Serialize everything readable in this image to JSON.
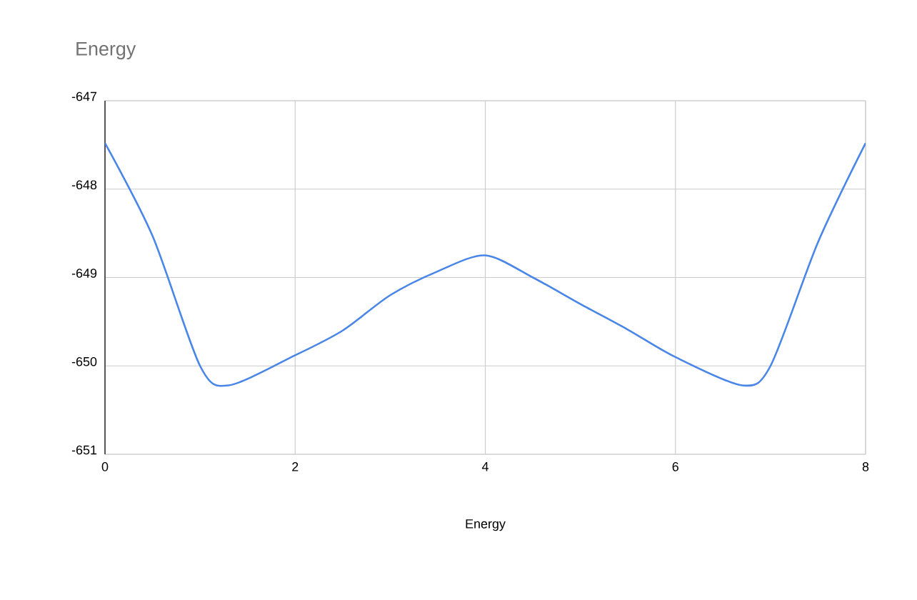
{
  "chart_data": {
    "type": "line",
    "title": "Energy",
    "xlabel": "Energy",
    "x": [
      0,
      0.5,
      1,
      1.3,
      2,
      2.5,
      3,
      3.5,
      4,
      4.5,
      5,
      5.5,
      6,
      6.7,
      7,
      7.5,
      8
    ],
    "series": [
      {
        "color": "#4a86e8",
        "values": [
          -647.48,
          -648.53,
          -650.0,
          -650.22,
          -649.88,
          -649.6,
          -649.2,
          -648.93,
          -648.75,
          -649.0,
          -649.3,
          -649.59,
          -649.9,
          -650.22,
          -650.0,
          -648.6,
          -647.48
        ]
      }
    ],
    "xlim": [
      0,
      8
    ],
    "ylim": [
      -651,
      -647
    ],
    "xticks": [
      0,
      2,
      4,
      6,
      8
    ],
    "yticks": [
      -651,
      -650,
      -649,
      -648,
      -647
    ],
    "grid": true,
    "marker": "none",
    "line_style": "solid"
  }
}
